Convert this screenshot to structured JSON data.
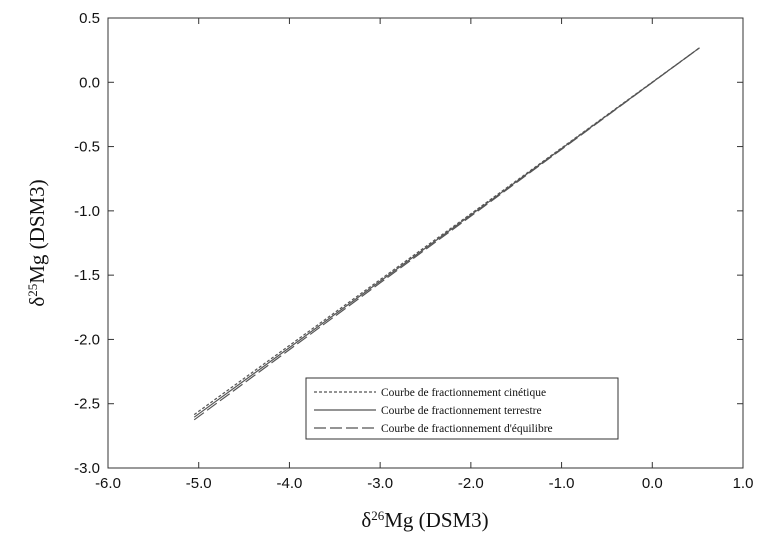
{
  "chart_data": {
    "type": "line",
    "title": "",
    "xlabel": {
      "prefix": "δ",
      "sup": "26",
      "rest": "Mg (DSM3)"
    },
    "ylabel": {
      "prefix": "δ",
      "sup": "25",
      "rest": "Mg (DSM3)"
    },
    "xlim": [
      -6.0,
      1.0
    ],
    "ylim": [
      -3.0,
      0.5
    ],
    "xticks": [
      "-6.0",
      "-5.0",
      "-4.0",
      "-3.0",
      "-2.0",
      "-1.0",
      "0.0",
      "1.0"
    ],
    "yticks": [
      "0.5",
      "0.0",
      "-0.5",
      "-1.0",
      "-1.5",
      "-2.0",
      "-2.5",
      "-3.0"
    ],
    "grid": false,
    "legend_position": "bottom-right",
    "series": [
      {
        "name": "Courbe de fractionnement cinétique",
        "style": "dotted",
        "x": [
          -5.05,
          0.52
        ],
        "y": [
          -2.585,
          0.268
        ]
      },
      {
        "name": "Courbe de fractionnement terrestre",
        "style": "solid",
        "x": [
          -5.05,
          0.52
        ],
        "y": [
          -2.605,
          0.268
        ]
      },
      {
        "name": "Courbe de fractionnement d'équilibre",
        "style": "dashed",
        "x": [
          -5.05,
          0.52
        ],
        "y": [
          -2.625,
          0.268
        ]
      }
    ],
    "colors": {
      "line": "#555555",
      "axis": "#333333"
    }
  }
}
